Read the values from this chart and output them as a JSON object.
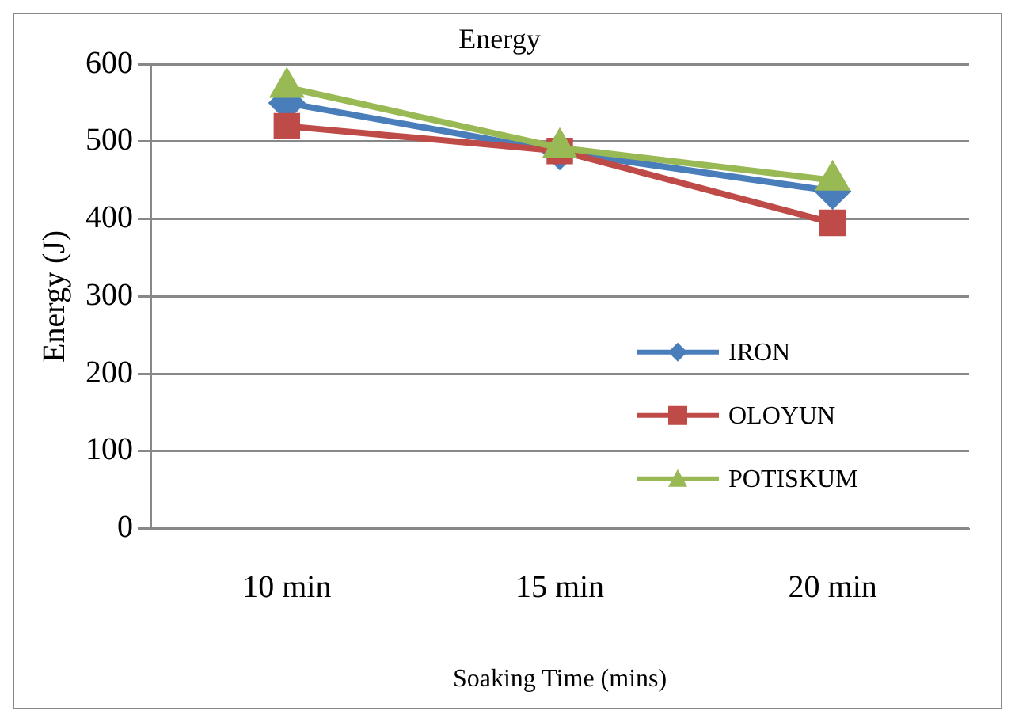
{
  "chart_data": {
    "type": "line",
    "title": "Energy",
    "xlabel": "Soaking Time (mins)",
    "ylabel": "Energy (J)",
    "categories": [
      "10 min",
      "15 min",
      "20 min"
    ],
    "series": [
      {
        "name": "IRON",
        "color": "#4a7ebb",
        "values": [
          550,
          487,
          436
        ],
        "marker": "diamond"
      },
      {
        "name": "OLOYUN",
        "color": "#be4b48",
        "values": [
          520,
          488,
          395
        ],
        "marker": "square"
      },
      {
        "name": "POTISKUM",
        "color": "#98b954",
        "values": [
          570,
          492,
          450
        ],
        "marker": "triangle"
      }
    ],
    "ylim": [
      0,
      600
    ],
    "yticks": [
      0,
      100,
      200,
      300,
      400,
      500,
      600
    ],
    "grid": "y",
    "legend": "right"
  }
}
